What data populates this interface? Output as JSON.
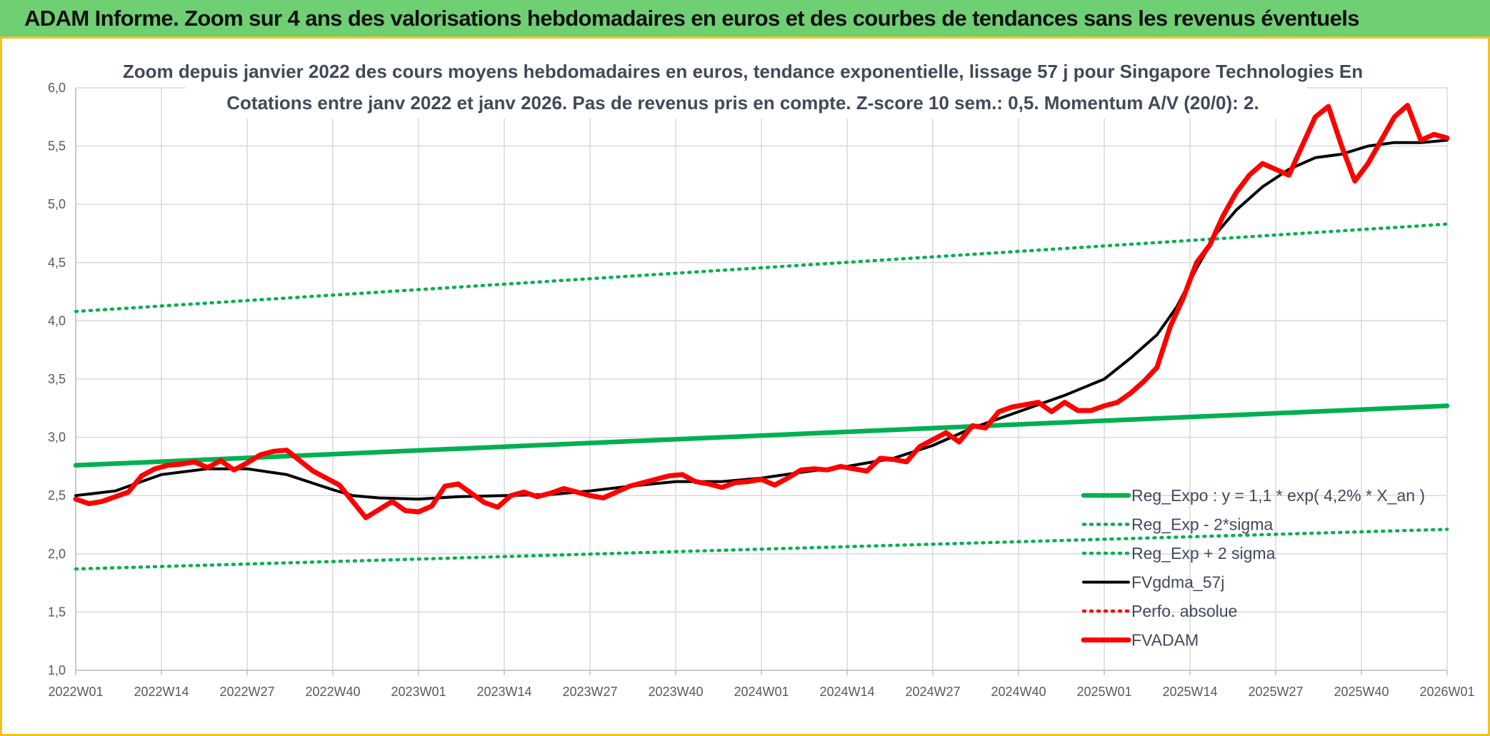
{
  "header": {
    "title": "ADAM Informe. Zoom sur 4 ans des valorisations hebdomadaires en euros et des courbes de tendances sans les revenus éventuels"
  },
  "colors": {
    "banner": "#6fcf73",
    "frame": "#f0c419",
    "green": "#00b050",
    "red": "#ff0000",
    "black": "#000000"
  },
  "chart_data": {
    "type": "line",
    "title": "Zoom depuis janvier 2022 des cours moyens hebdomadaires en euros, tendance exponentielle, lissage 57 j pour Singapore Technologies En",
    "subtitle": "Cotations entre janv 2022 et janv 2026. Pas de revenus pris en compte. Z-score 10 sem.: 0,5. Momentum A/V (20/0): 2.",
    "xlabel": "",
    "ylabel": "",
    "ylim": [
      1.0,
      6.0
    ],
    "yticks": [
      1.0,
      1.5,
      2.0,
      2.5,
      3.0,
      3.5,
      4.0,
      4.5,
      5.0,
      5.5,
      6.0
    ],
    "ytick_labels": [
      "1,0",
      "1,5",
      "2,0",
      "2,5",
      "3,0",
      "3,5",
      "4,0",
      "4,5",
      "5,0",
      "5,5",
      "6,0"
    ],
    "xlim": [
      0,
      208
    ],
    "xticks": [
      0,
      13,
      26,
      39,
      52,
      65,
      78,
      91,
      104,
      117,
      130,
      143,
      156,
      169,
      182,
      195,
      208
    ],
    "xtick_labels": [
      "2022W01",
      "2022W14",
      "2022W27",
      "2022W40",
      "2023W01",
      "2023W14",
      "2023W27",
      "2023W40",
      "2024W01",
      "2024W14",
      "2024W27",
      "2024W40",
      "2025W01",
      "2025W14",
      "2025W27",
      "2025W40",
      "2026W01"
    ],
    "grid": true,
    "legend_position": "bottom-right",
    "series": [
      {
        "name": "Reg_Expo : y = 1,1 * exp( 4,2% *  X_an )",
        "style": "solid",
        "color": "#00b050",
        "x": [
          0,
          208
        ],
        "y": [
          2.76,
          3.27
        ]
      },
      {
        "name": "Reg_Exp - 2*sigma",
        "style": "dotted",
        "color": "#00b050",
        "x": [
          0,
          208
        ],
        "y": [
          1.87,
          2.21
        ]
      },
      {
        "name": "Reg_Exp + 2 sigma",
        "style": "dotted",
        "color": "#00b050",
        "x": [
          0,
          208
        ],
        "y": [
          4.08,
          4.83
        ]
      },
      {
        "name": "FVgdma_57j",
        "style": "solid",
        "color": "#000000",
        "x": [
          0,
          6,
          13,
          20,
          26,
          32,
          39,
          42,
          46,
          52,
          58,
          65,
          72,
          78,
          84,
          91,
          98,
          104,
          110,
          117,
          124,
          130,
          136,
          143,
          150,
          156,
          160,
          164,
          167,
          170,
          173,
          176,
          180,
          184,
          188,
          192,
          196,
          200,
          204,
          208
        ],
        "y": [
          2.5,
          2.54,
          2.68,
          2.73,
          2.73,
          2.68,
          2.55,
          2.5,
          2.48,
          2.47,
          2.49,
          2.5,
          2.51,
          2.54,
          2.58,
          2.62,
          2.62,
          2.65,
          2.7,
          2.75,
          2.82,
          2.93,
          3.08,
          3.22,
          3.36,
          3.5,
          3.68,
          3.88,
          4.12,
          4.45,
          4.75,
          4.95,
          5.15,
          5.3,
          5.4,
          5.43,
          5.5,
          5.53,
          5.53,
          5.55
        ]
      },
      {
        "name": "Perfo. absolue",
        "style": "dotted",
        "color": "#ff0000",
        "x": [],
        "y": []
      },
      {
        "name": "FVADAM",
        "style": "solid",
        "color": "#ff0000",
        "x": [
          0,
          2,
          4,
          6,
          8,
          10,
          12,
          14,
          16,
          18,
          20,
          22,
          24,
          26,
          28,
          30,
          32,
          34,
          36,
          38,
          40,
          42,
          44,
          46,
          48,
          50,
          52,
          54,
          56,
          58,
          60,
          62,
          64,
          66,
          68,
          70,
          72,
          74,
          76,
          78,
          80,
          82,
          84,
          86,
          88,
          90,
          92,
          94,
          96,
          98,
          100,
          102,
          104,
          106,
          108,
          110,
          112,
          114,
          116,
          118,
          120,
          122,
          124,
          126,
          128,
          130,
          132,
          134,
          136,
          138,
          140,
          142,
          144,
          146,
          148,
          150,
          152,
          154,
          156,
          158,
          160,
          162,
          164,
          166,
          168,
          170,
          172,
          174,
          176,
          178,
          180,
          182,
          184,
          186,
          188,
          190,
          192,
          194,
          196,
          198,
          200,
          202,
          204,
          206,
          208
        ],
        "y": [
          2.47,
          2.43,
          2.45,
          2.49,
          2.53,
          2.67,
          2.73,
          2.76,
          2.77,
          2.79,
          2.74,
          2.8,
          2.72,
          2.78,
          2.85,
          2.88,
          2.89,
          2.8,
          2.71,
          2.65,
          2.59,
          2.45,
          2.31,
          2.38,
          2.45,
          2.37,
          2.36,
          2.41,
          2.58,
          2.6,
          2.52,
          2.44,
          2.4,
          2.5,
          2.53,
          2.49,
          2.52,
          2.56,
          2.53,
          2.5,
          2.48,
          2.53,
          2.58,
          2.61,
          2.64,
          2.67,
          2.68,
          2.62,
          2.6,
          2.57,
          2.61,
          2.62,
          2.64,
          2.59,
          2.65,
          2.72,
          2.73,
          2.72,
          2.75,
          2.73,
          2.71,
          2.82,
          2.81,
          2.79,
          2.92,
          2.98,
          3.04,
          2.96,
          3.1,
          3.08,
          3.22,
          3.26,
          3.28,
          3.3,
          3.22,
          3.3,
          3.23,
          3.23,
          3.27,
          3.3,
          3.38,
          3.48,
          3.6,
          3.95,
          4.2,
          4.5,
          4.65,
          4.9,
          5.1,
          5.25,
          5.35,
          5.3,
          5.25,
          5.5,
          5.75,
          5.84,
          5.5,
          5.2,
          5.35,
          5.55,
          5.75,
          5.85,
          5.55,
          5.6,
          5.57
        ]
      }
    ]
  }
}
